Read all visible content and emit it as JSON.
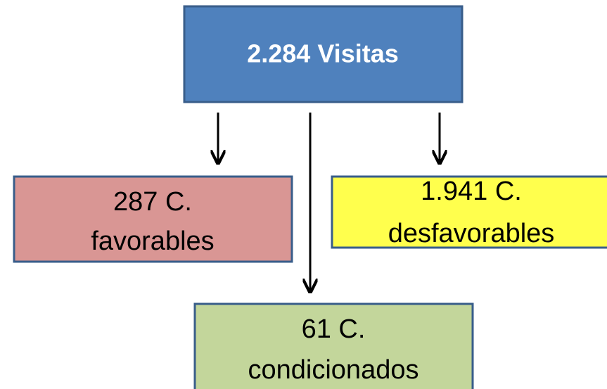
{
  "nodes": [
    {
      "lines": [
        "2.284 Visitas"
      ]
    },
    {
      "lines": [
        "287 C.",
        "favorables"
      ]
    },
    {
      "lines": [
        "1.941 C.",
        "desfavorables"
      ]
    },
    {
      "lines": [
        "61 C.",
        "condicionados"
      ]
    }
  ]
}
